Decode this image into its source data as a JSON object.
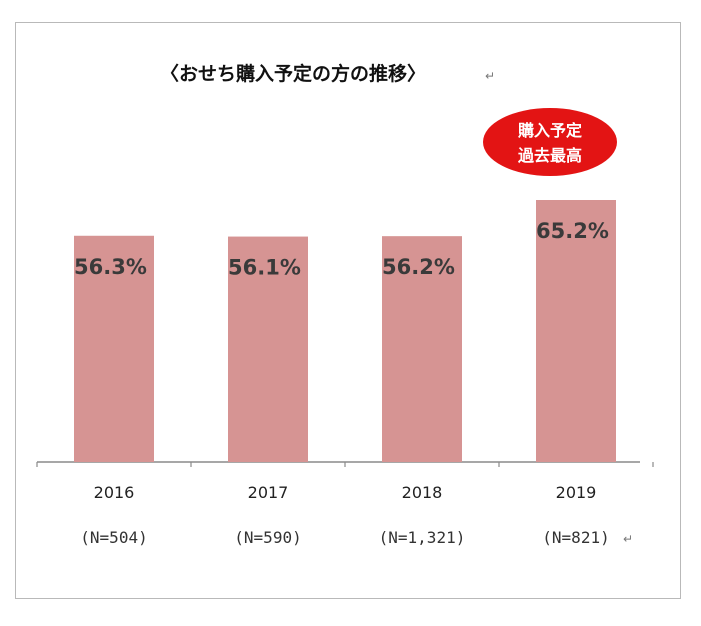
{
  "chart_data": {
    "type": "bar",
    "title": "〈おせち購入予定の方の推移〉",
    "categories": [
      "2016",
      "2017",
      "2018",
      "2019"
    ],
    "sample_sizes": [
      "(N=504)",
      "(N=590)",
      "(N=1,321)",
      "(N=821)"
    ],
    "values": [
      56.3,
      56.1,
      56.2,
      65.2
    ],
    "value_labels": [
      "56.3%",
      "56.1%",
      "56.2%",
      "65.2%"
    ],
    "bar_color": "#d69493",
    "annotation": {
      "lines": [
        "購入予定",
        "過去最高"
      ],
      "color": "#e31414",
      "target_category": "2019"
    },
    "ylim": [
      0,
      72
    ],
    "grid": false,
    "legend": "none"
  }
}
